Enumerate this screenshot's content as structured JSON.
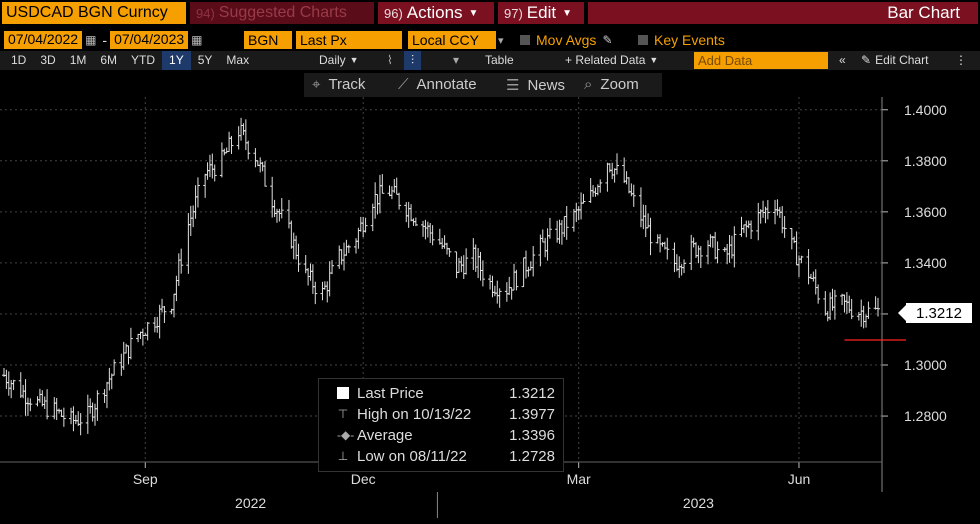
{
  "header": {
    "ticker": "USDCAD BGN Curncy",
    "suggested_num": "94)",
    "suggested_label": "Suggested Charts",
    "actions_num": "96)",
    "actions_label": "Actions",
    "edit_num": "97)",
    "edit_label": "Edit",
    "title": "Bar Chart"
  },
  "controls": {
    "start_date": "07/04/2022",
    "end_date": "07/04/2023",
    "date_sep": "-",
    "source": "BGN",
    "field": "Last Px",
    "currency": "Local CCY",
    "mov_avgs": "Mov Avgs",
    "key_events": "Key Events"
  },
  "timeframes": {
    "items": [
      "1D",
      "3D",
      "1M",
      "6M",
      "YTD",
      "1Y",
      "5Y",
      "Max"
    ],
    "selected": "1Y",
    "period": "Daily",
    "table": "Table",
    "related": "+ Related Data",
    "add_data_placeholder": "Add Data",
    "edit_chart": "Edit Chart"
  },
  "tools": {
    "track": "Track",
    "annotate": "Annotate",
    "news": "News",
    "zoom": "Zoom"
  },
  "legend": {
    "last_label": "Last Price",
    "last_value": "1.3212",
    "high_label": "High on 10/13/22",
    "high_value": "1.3977",
    "avg_label": "Average",
    "avg_value": "1.3396",
    "low_label": "Low on 08/11/22",
    "low_value": "1.2728"
  },
  "price_tag": "1.3212",
  "colors": {
    "accent": "#f5a000",
    "header_red": "#7a1020",
    "bars": "#e0e0e0",
    "marker_line": "#ff2020"
  },
  "chart_data": {
    "type": "bar",
    "subtype": "ohlc",
    "ylim": [
      1.262,
      1.405
    ],
    "yticks": [
      "1.2800",
      "1.3000",
      "1.3200",
      "1.3400",
      "1.3600",
      "1.3800",
      "1.4000"
    ],
    "x_months": [
      "Sep",
      "Dec",
      "Mar",
      "Jun"
    ],
    "x_years": [
      "2022",
      "2023"
    ],
    "last_price": 1.3212,
    "average": 1.3396,
    "high": 1.3977,
    "low": 1.2728,
    "x": [
      "2022-07-04",
      "2022-07-11",
      "2022-07-18",
      "2022-07-25",
      "2022-08-01",
      "2022-08-08",
      "2022-08-15",
      "2022-08-22",
      "2022-08-29",
      "2022-09-05",
      "2022-09-12",
      "2022-09-19",
      "2022-09-26",
      "2022-10-03",
      "2022-10-10",
      "2022-10-17",
      "2022-10-24",
      "2022-10-31",
      "2022-11-07",
      "2022-11-14",
      "2022-11-21",
      "2022-11-28",
      "2022-12-05",
      "2022-12-12",
      "2022-12-19",
      "2022-12-26",
      "2023-01-02",
      "2023-01-09",
      "2023-01-16",
      "2023-01-23",
      "2023-01-30",
      "2023-02-06",
      "2023-02-13",
      "2023-02-20",
      "2023-02-27",
      "2023-03-06",
      "2023-03-13",
      "2023-03-20",
      "2023-03-27",
      "2023-04-03",
      "2023-04-10",
      "2023-04-17",
      "2023-04-24",
      "2023-05-01",
      "2023-05-08",
      "2023-05-15",
      "2023-05-22",
      "2023-05-29",
      "2023-06-05",
      "2023-06-12",
      "2023-06-19",
      "2023-06-26"
    ],
    "close": [
      1.296,
      1.29,
      1.285,
      1.282,
      1.278,
      1.28,
      1.292,
      1.302,
      1.312,
      1.318,
      1.325,
      1.355,
      1.375,
      1.38,
      1.392,
      1.382,
      1.365,
      1.352,
      1.335,
      1.328,
      1.342,
      1.35,
      1.365,
      1.368,
      1.362,
      1.355,
      1.348,
      1.338,
      1.342,
      1.332,
      1.33,
      1.338,
      1.346,
      1.352,
      1.358,
      1.366,
      1.38,
      1.372,
      1.358,
      1.346,
      1.34,
      1.345,
      1.348,
      1.342,
      1.352,
      1.358,
      1.364,
      1.346,
      1.336,
      1.322,
      1.324,
      1.321
    ]
  }
}
